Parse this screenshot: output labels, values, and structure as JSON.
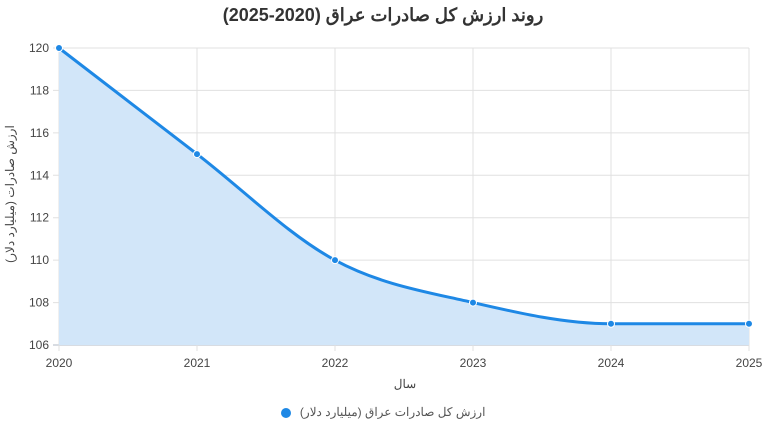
{
  "chart_data": {
    "type": "area",
    "title": "روند ارزش کل صادرات عراق (2020-2025)",
    "xlabel": "سال",
    "ylabel": "ارزش صادرات (میلیارد دلار)",
    "categories": [
      "2020",
      "2021",
      "2022",
      "2023",
      "2024",
      "2025"
    ],
    "series": [
      {
        "name": "ارزش کل صادرات عراق (میلیارد دلار)",
        "values": [
          120,
          115,
          110,
          108,
          107,
          107
        ],
        "color": "#1e88e5",
        "fill": "#d2e6f9"
      }
    ],
    "ylim": [
      106,
      120
    ],
    "yticks": [
      106,
      108,
      110,
      112,
      114,
      116,
      118,
      120
    ],
    "grid": true,
    "legend_position": "bottom",
    "smooth": true
  }
}
